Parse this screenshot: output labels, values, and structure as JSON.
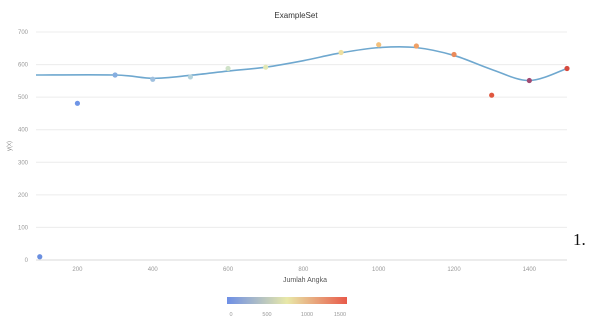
{
  "chart_data": {
    "type": "scatter",
    "title": "ExampleSet",
    "xlabel": "Jumlah Angka",
    "ylabel": "y(x)",
    "xlim": [
      90,
      1500
    ],
    "ylim": [
      0,
      700
    ],
    "xticks": [
      200,
      400,
      600,
      800,
      1000,
      1200,
      1400
    ],
    "yticks": [
      0,
      100,
      200,
      300,
      400,
      500,
      600,
      700
    ],
    "grid": "horizontal",
    "points": [
      {
        "x": 100,
        "y": 10,
        "color": "#6a8fe0"
      },
      {
        "x": 200,
        "y": 481,
        "color": "#6f95e6"
      },
      {
        "x": 300,
        "y": 568,
        "color": "#86aee0"
      },
      {
        "x": 400,
        "y": 555,
        "color": "#9fc0df"
      },
      {
        "x": 500,
        "y": 562,
        "color": "#b6d3dc"
      },
      {
        "x": 600,
        "y": 588,
        "color": "#cfe2c8"
      },
      {
        "x": 700,
        "y": 592,
        "color": "#e1e8b5"
      },
      {
        "x": 900,
        "y": 637,
        "color": "#efe0a0"
      },
      {
        "x": 1000,
        "y": 661,
        "color": "#f3c07c"
      },
      {
        "x": 1100,
        "y": 657,
        "color": "#f0a065"
      },
      {
        "x": 1200,
        "y": 631,
        "color": "#ea8a5a"
      },
      {
        "x": 1300,
        "y": 506,
        "color": "#e0573f"
      },
      {
        "x": 1400,
        "y": 551,
        "color": "#a04a72"
      },
      {
        "x": 1500,
        "y": 588,
        "color": "#d64a3e"
      }
    ],
    "fit_line": {
      "color": "#6fa8cf",
      "points": [
        [
          90,
          568
        ],
        [
          300,
          568
        ],
        [
          400,
          558
        ],
        [
          500,
          567
        ],
        [
          600,
          580
        ],
        [
          700,
          592
        ],
        [
          800,
          612
        ],
        [
          900,
          636
        ],
        [
          1000,
          652
        ],
        [
          1100,
          652
        ],
        [
          1200,
          628
        ],
        [
          1300,
          585
        ],
        [
          1400,
          551
        ],
        [
          1500,
          588
        ]
      ]
    },
    "colorbar": {
      "ticks": [
        "0",
        "500",
        "1000",
        "1500"
      ],
      "colors": [
        "#6e8fe6",
        "#e8e8a8",
        "#e85a4a"
      ]
    }
  },
  "side_note": "1."
}
